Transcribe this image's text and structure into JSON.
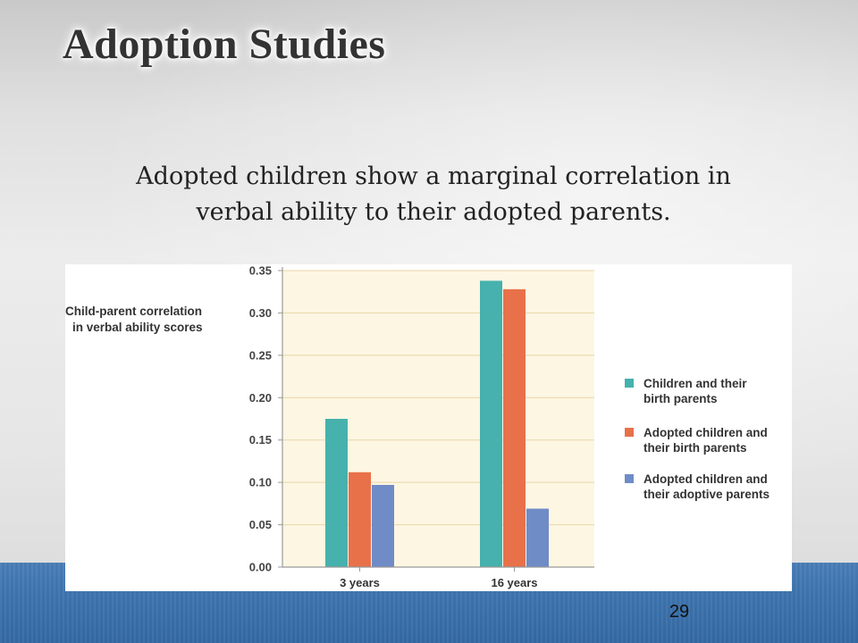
{
  "slide": {
    "title": "Adoption Studies",
    "subtitle_lines": [
      "Adopted children show a marginal correlation in",
      "verbal ability to their adopted parents."
    ],
    "page_number": "29"
  },
  "chart_data": {
    "type": "bar",
    "ylabel_lines": [
      "Child-parent correlation",
      "in verbal ability scores"
    ],
    "categories": [
      "3 years",
      "16 years"
    ],
    "series": [
      {
        "name_lines": [
          "Children and their",
          "birth parents"
        ],
        "color": "#46b1ad",
        "values": [
          0.175,
          0.338
        ]
      },
      {
        "name_lines": [
          "Adopted children and",
          "their birth parents"
        ],
        "color": "#e8714a",
        "values": [
          0.112,
          0.328
        ]
      },
      {
        "name_lines": [
          "Adopted children and",
          "their adoptive parents"
        ],
        "color": "#6f8cc7",
        "values": [
          0.097,
          0.069
        ]
      }
    ],
    "y_ticks": [
      "0.00",
      "0.05",
      "0.10",
      "0.15",
      "0.20",
      "0.25",
      "0.30",
      "0.35"
    ],
    "ylim": [
      0,
      0.35
    ],
    "grid": true,
    "plot_background": "#fdf6e3",
    "grid_color": "#e9d7a8",
    "legend_position": "right"
  }
}
